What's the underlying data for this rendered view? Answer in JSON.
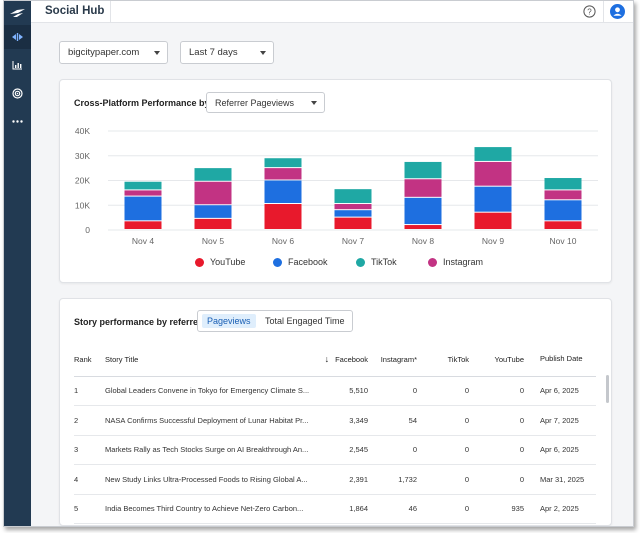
{
  "app": {
    "title": "Social Hub"
  },
  "filters": {
    "site": "bigcitypaper.com",
    "range": "Last 7 days"
  },
  "performance": {
    "title": "Cross-Platform Performance by:",
    "metric": "Referrer Pageviews",
    "legend": [
      "YouTube",
      "Facebook",
      "TikTok",
      "Instagram"
    ]
  },
  "colors": {
    "youtube": "#e8192c",
    "facebook": "#1e6fe0",
    "tiktok": "#1fa8a4",
    "instagram": "#c23383"
  },
  "chart_data": {
    "type": "bar",
    "stacked": true,
    "categories": [
      "Nov 4",
      "Nov 5",
      "Nov 6",
      "Nov 7",
      "Nov 8",
      "Nov 9",
      "Nov 10"
    ],
    "yticks": [
      "0",
      "10K",
      "20K",
      "30K",
      "40K"
    ],
    "ylim": [
      0,
      40000
    ],
    "grid": true,
    "legend_position": "bottom",
    "series": [
      {
        "name": "YouTube",
        "values": [
          3500,
          4500,
          10500,
          5000,
          2000,
          7000,
          3500
        ]
      },
      {
        "name": "Facebook",
        "values": [
          10000,
          5500,
          9500,
          3000,
          11000,
          10500,
          8500
        ]
      },
      {
        "name": "Instagram",
        "values": [
          2500,
          9500,
          5000,
          2500,
          7500,
          10000,
          4000
        ]
      },
      {
        "name": "TikTok",
        "values": [
          3500,
          5500,
          4000,
          6000,
          7000,
          6000,
          5000
        ]
      }
    ]
  },
  "story": {
    "title": "Story performance by referred",
    "tabs": [
      "Pageviews",
      "Total Engaged Time"
    ],
    "columns": {
      "rank": "Rank",
      "title": "Story Title",
      "facebook": "Facebook",
      "instagram": "Instagram*",
      "tiktok": "TikTok",
      "youtube": "YouTube",
      "publish": "Publish Date"
    },
    "sort_arrow": "↓",
    "rows": [
      {
        "rank": "1",
        "title": "Global Leaders Convene in Tokyo for Emergency Climate S...",
        "facebook": "5,510",
        "instagram": "0",
        "tiktok": "0",
        "youtube": "0",
        "date": "Apr 6, 2025"
      },
      {
        "rank": "2",
        "title": "NASA Confirms Successful Deployment of Lunar Habitat Pr...",
        "facebook": "3,349",
        "instagram": "54",
        "tiktok": "0",
        "youtube": "0",
        "date": "Apr 7, 2025"
      },
      {
        "rank": "3",
        "title": "Markets Rally as Tech Stocks Surge on AI Breakthrough An...",
        "facebook": "2,545",
        "instagram": "0",
        "tiktok": "0",
        "youtube": "0",
        "date": "Apr 6, 2025"
      },
      {
        "rank": "4",
        "title": "New Study Links Ultra-Processed Foods to Rising Global A...",
        "facebook": "2,391",
        "instagram": "1,732",
        "tiktok": "0",
        "youtube": "0",
        "date": "Mar 31, 2025"
      },
      {
        "rank": "5",
        "title": "India Becomes Third Country to Achieve Net-Zero Carbon...",
        "facebook": "1,864",
        "instagram": "46",
        "tiktok": "0",
        "youtube": "935",
        "date": "Apr 2, 2025"
      }
    ]
  }
}
